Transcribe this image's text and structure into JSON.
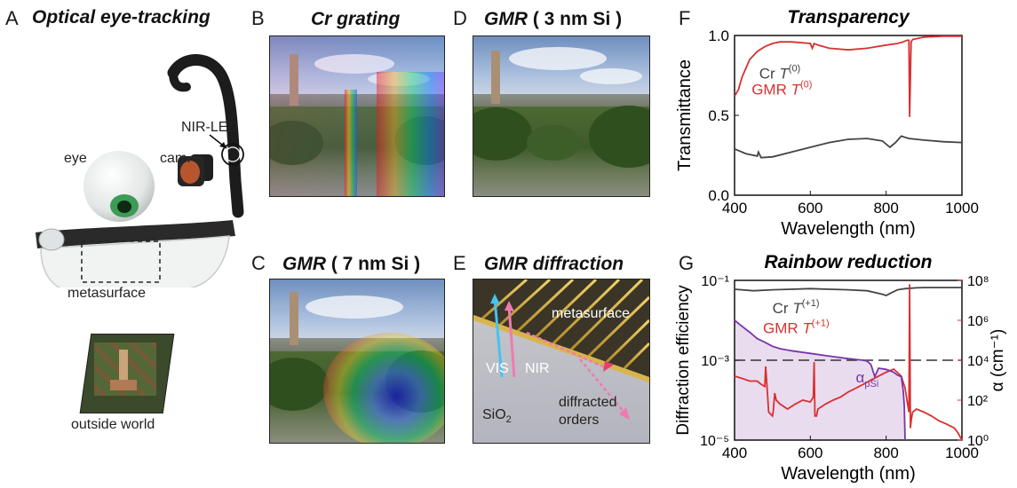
{
  "panels": {
    "a": {
      "letter": "A",
      "title": "Optical eye-tracking",
      "labels": {
        "nir_led": "NIR-LED",
        "eye": "eye",
        "cam": "cam.",
        "metasurface": "metasurface",
        "outside_world": "outside world"
      }
    },
    "b": {
      "letter": "B",
      "title": "Cr grating"
    },
    "d": {
      "letter": "D",
      "title_italic": "GMR",
      "title_rest": " ( 3 nm Si )"
    },
    "c": {
      "letter": "C",
      "title_italic": "GMR",
      "title_rest": " ( 7 nm Si )"
    },
    "e": {
      "letter": "E",
      "title": "GMR diffraction",
      "labels": {
        "metasurface": "metasurface",
        "vis": "VIS",
        "nir": "NIR",
        "sio2": "SiO",
        "sio2_sub": "2",
        "diffracted": "diffracted",
        "orders": "orders"
      }
    },
    "f": {
      "letter": "F"
    },
    "g": {
      "letter": "G"
    }
  },
  "chart_data": [
    {
      "panel": "F",
      "type": "line",
      "title": "Transparency",
      "xlabel": "Wavelength (nm)",
      "ylabel": "Transmittance",
      "xlim": [
        400,
        1000
      ],
      "ylim": [
        0,
        1
      ],
      "xticks": [
        "400",
        "600",
        "800",
        "1000"
      ],
      "yticks": [
        "0.0",
        "0.5",
        "1.0"
      ],
      "legend": [
        {
          "name": "Cr",
          "sym": "T",
          "sup": "(0)",
          "color": "#444444"
        },
        {
          "name": "GMR",
          "sym": "T",
          "sup": "(0)",
          "color": "#d93030"
        }
      ],
      "series": [
        {
          "name": "GMR T(0)",
          "color": "#d93030",
          "x": [
            400,
            410,
            420,
            440,
            460,
            480,
            500,
            520,
            550,
            600,
            605,
            610,
            620,
            650,
            700,
            750,
            800,
            830,
            845,
            855,
            860,
            862,
            866,
            870,
            880,
            900,
            950,
            1000
          ],
          "y": [
            0.62,
            0.66,
            0.74,
            0.85,
            0.9,
            0.93,
            0.95,
            0.96,
            0.96,
            0.95,
            0.92,
            0.95,
            0.94,
            0.92,
            0.91,
            0.92,
            0.94,
            0.95,
            0.96,
            0.97,
            0.97,
            0.49,
            0.96,
            0.975,
            0.98,
            0.99,
            0.995,
            0.995
          ]
        },
        {
          "name": "Cr T(0)",
          "color": "#444444",
          "x": [
            400,
            430,
            460,
            463,
            470,
            500,
            550,
            600,
            650,
            700,
            750,
            790,
            810,
            825,
            840,
            860,
            900,
            950,
            1000
          ],
          "y": [
            0.29,
            0.26,
            0.245,
            0.27,
            0.235,
            0.24,
            0.27,
            0.3,
            0.33,
            0.35,
            0.355,
            0.34,
            0.3,
            0.33,
            0.37,
            0.355,
            0.345,
            0.335,
            0.33
          ]
        }
      ]
    },
    {
      "panel": "G",
      "type": "line",
      "title": "Rainbow reduction",
      "xlabel": "Wavelength (nm)",
      "ylabel": "Diffraction efficiency",
      "y2label": "α (cm⁻¹)",
      "xlim": [
        400,
        1000
      ],
      "ylim_log10": [
        -5,
        -1
      ],
      "y2lim_log10": [
        0,
        8
      ],
      "xticks": [
        "400",
        "600",
        "800",
        "1000"
      ],
      "yticks": [
        "10⁻⁵",
        "10⁻³",
        "10⁻¹"
      ],
      "y2ticks": [
        "10⁰",
        "10²",
        "10⁴",
        "10⁶",
        "10⁸"
      ],
      "threshold": 0.001,
      "legend": [
        {
          "name": "Cr",
          "sym": "T",
          "sup": "(+1)",
          "color": "#444444"
        },
        {
          "name": "GMR",
          "sym": "T",
          "sup": "(+1)",
          "color": "#d93030"
        }
      ],
      "alpha_label": "α",
      "alpha_sub": "pSi",
      "series": [
        {
          "name": "Cr T(+1)",
          "color": "#444444",
          "x": [
            400,
            450,
            500,
            550,
            600,
            650,
            700,
            750,
            790,
            800,
            810,
            830,
            850,
            880,
            900,
            950,
            1000
          ],
          "y": [
            0.06,
            0.055,
            0.058,
            0.06,
            0.062,
            0.06,
            0.058,
            0.055,
            0.045,
            0.042,
            0.047,
            0.058,
            0.062,
            0.065,
            0.066,
            0.066,
            0.066
          ]
        },
        {
          "name": "GMR T(+1)",
          "color": "#d93030",
          "x": [
            400,
            420,
            440,
            460,
            470,
            480,
            482,
            486,
            490,
            500,
            502,
            506,
            510,
            520,
            540,
            560,
            580,
            600,
            608,
            610,
            612,
            616,
            620,
            640,
            660,
            680,
            700,
            720,
            740,
            760,
            780,
            800,
            820,
            840,
            850,
            855,
            860,
            862,
            864,
            866,
            868,
            870,
            880,
            900,
            920,
            940,
            960,
            980,
            990,
            1000
          ],
          "y": [
            0.0004,
            0.00035,
            0.0003,
            0.0003,
            0.00025,
            0.00022,
            0.0007,
            0.0002,
            5e-05,
            4e-05,
            5e-05,
            0.00015,
            0.0001,
            8e-05,
            6e-05,
            8e-05,
            0.0001,
            9e-05,
            0.00012,
            0.0009,
            4e-05,
            4e-05,
            6e-05,
            8e-05,
            0.0001,
            0.00012,
            0.00016,
            0.0002,
            0.00025,
            0.00032,
            0.0004,
            0.0005,
            0.0006,
            0.0004,
            0.0002,
            0.0001,
            5e-05,
            0.08,
            2e-05,
            3e-05,
            4e-05,
            5e-05,
            6e-05,
            5e-05,
            4e-05,
            3e-05,
            2.5e-05,
            2e-05,
            1.5e-05,
            1e-05
          ]
        },
        {
          "name": "α pSi",
          "color": "#7a35a8",
          "axis": "right",
          "x": [
            400,
            420,
            440,
            460,
            480,
            500,
            520,
            550,
            600,
            650,
            700,
            720,
            740,
            750,
            760,
            770,
            780,
            800,
            820,
            830,
            840,
            845,
            848,
            850
          ],
          "y": [
            1000000,
            500000,
            250000,
            120000,
            80000,
            50000,
            38000,
            30000,
            22000,
            16000,
            12000,
            11000,
            10000,
            9000,
            6000,
            1500,
            4000,
            3500,
            2500,
            1800,
            1500,
            300,
            50,
            1
          ]
        }
      ]
    }
  ]
}
